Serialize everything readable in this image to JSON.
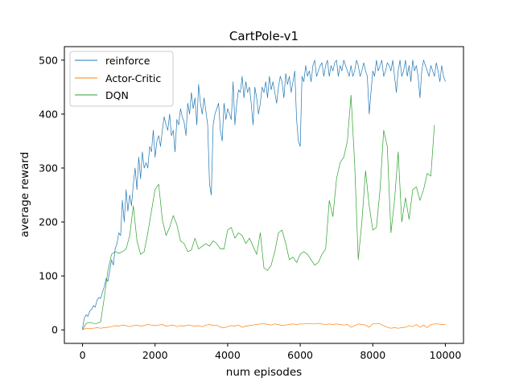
{
  "chart_data": {
    "type": "line",
    "title": "CartPole-v1",
    "xlabel": "num episodes",
    "ylabel": "average reward",
    "xlim": [
      -500,
      10500
    ],
    "ylim": [
      -25,
      525
    ],
    "xticks": [
      0,
      2000,
      4000,
      6000,
      8000,
      10000
    ],
    "xtick_labels": [
      "0",
      "2000",
      "4000",
      "6000",
      "8000",
      "10000"
    ],
    "yticks": [
      0,
      100,
      200,
      300,
      400,
      500
    ],
    "ytick_labels": [
      "0",
      "100",
      "200",
      "300",
      "400",
      "500"
    ],
    "grid": false,
    "legend_position": "top-left",
    "series": [
      {
        "name": "reinforce",
        "color": "#1f77b4",
        "x": [
          0,
          50,
          100,
          150,
          200,
          250,
          300,
          350,
          400,
          450,
          500,
          550,
          600,
          650,
          700,
          750,
          800,
          850,
          900,
          950,
          1000,
          1050,
          1100,
          1150,
          1200,
          1250,
          1300,
          1350,
          1400,
          1450,
          1500,
          1550,
          1600,
          1650,
          1700,
          1750,
          1800,
          1850,
          1900,
          1950,
          2000,
          2050,
          2100,
          2150,
          2200,
          2250,
          2300,
          2350,
          2400,
          2450,
          2500,
          2550,
          2600,
          2650,
          2700,
          2750,
          2800,
          2850,
          2900,
          2950,
          3000,
          3050,
          3100,
          3150,
          3200,
          3250,
          3300,
          3350,
          3400,
          3450,
          3500,
          3550,
          3600,
          3650,
          3700,
          3750,
          3800,
          3850,
          3900,
          3950,
          4000,
          4050,
          4100,
          4150,
          4200,
          4250,
          4300,
          4350,
          4400,
          4450,
          4500,
          4550,
          4600,
          4650,
          4700,
          4750,
          4800,
          4850,
          4900,
          4950,
          5000,
          5050,
          5100,
          5150,
          5200,
          5250,
          5300,
          5350,
          5400,
          5450,
          5500,
          5550,
          5600,
          5650,
          5700,
          5750,
          5800,
          5850,
          5900,
          5950,
          6000,
          6050,
          6100,
          6150,
          6200,
          6250,
          6300,
          6350,
          6400,
          6450,
          6500,
          6550,
          6600,
          6650,
          6700,
          6750,
          6800,
          6850,
          6900,
          6950,
          7000,
          7050,
          7100,
          7150,
          7200,
          7250,
          7300,
          7350,
          7400,
          7450,
          7500,
          7550,
          7600,
          7650,
          7700,
          7750,
          7800,
          7850,
          7900,
          7950,
          8000,
          8050,
          8100,
          8150,
          8200,
          8250,
          8300,
          8350,
          8400,
          8450,
          8500,
          8550,
          8600,
          8650,
          8700,
          8750,
          8800,
          8850,
          8900,
          8950,
          9000,
          9050,
          9100,
          9150,
          9200,
          9250,
          9300,
          9350,
          9400,
          9450,
          9500,
          9550,
          9600,
          9650,
          9700,
          9750,
          9800,
          9850,
          9900,
          9950,
          10000
        ],
        "values": [
          2,
          22,
          28,
          25,
          35,
          38,
          45,
          42,
          55,
          60,
          58,
          70,
          80,
          95,
          90,
          110,
          130,
          120,
          150,
          160,
          180,
          175,
          240,
          200,
          260,
          220,
          250,
          230,
          270,
          300,
          260,
          320,
          280,
          330,
          300,
          310,
          300,
          340,
          330,
          370,
          320,
          350,
          360,
          340,
          370,
          395,
          380,
          370,
          400,
          360,
          370,
          330,
          390,
          380,
          410,
          395,
          385,
          360,
          420,
          400,
          440,
          410,
          430,
          380,
          455,
          420,
          400,
          430,
          405,
          380,
          270,
          250,
          380,
          400,
          410,
          420,
          370,
          350,
          420,
          390,
          410,
          400,
          390,
          460,
          380,
          420,
          445,
          440,
          470,
          430,
          460,
          440,
          450,
          420,
          380,
          450,
          430,
          400,
          420,
          450,
          440,
          460,
          430,
          470,
          445,
          460,
          440,
          420,
          450,
          470,
          460,
          430,
          475,
          455,
          470,
          440,
          460,
          480,
          390,
          350,
          340,
          470,
          460,
          490,
          470,
          480,
          460,
          490,
          500,
          470,
          480,
          490,
          495,
          470,
          490,
          500,
          470,
          490,
          480,
          495,
          500,
          470,
          490,
          480,
          500,
          490,
          480,
          470,
          490,
          470,
          480,
          500,
          490,
          470,
          480,
          495,
          480,
          470,
          400,
          440,
          480,
          470,
          500,
          480,
          490,
          500,
          470,
          480,
          495,
          490,
          480,
          500,
          470,
          440,
          480,
          500,
          470,
          480,
          500,
          470,
          490,
          460,
          500,
          480,
          490,
          470,
          430,
          480,
          500,
          490,
          480,
          470,
          490,
          480,
          470,
          495,
          480,
          460,
          490,
          470,
          460
        ]
      },
      {
        "name": "Actor-Critic",
        "color": "#ff7f0e",
        "x": [
          0,
          100,
          200,
          300,
          400,
          500,
          600,
          700,
          800,
          900,
          1000,
          1100,
          1200,
          1300,
          1400,
          1500,
          1600,
          1700,
          1800,
          1900,
          2000,
          2100,
          2200,
          2300,
          2400,
          2500,
          2600,
          2700,
          2800,
          2900,
          3000,
          3100,
          3200,
          3300,
          3400,
          3500,
          3600,
          3700,
          3800,
          3900,
          4000,
          4100,
          4200,
          4300,
          4400,
          4500,
          4600,
          4700,
          4800,
          4900,
          5000,
          5100,
          5200,
          5300,
          5400,
          5500,
          5600,
          5700,
          5800,
          5900,
          6000,
          6100,
          6200,
          6300,
          6400,
          6500,
          6600,
          6700,
          6800,
          6900,
          7000,
          7100,
          7200,
          7300,
          7400,
          7500,
          7600,
          7700,
          7800,
          7900,
          8000,
          8100,
          8200,
          8300,
          8400,
          8500,
          8600,
          8700,
          8800,
          8900,
          9000,
          9100,
          9200,
          9300,
          9400,
          9500,
          9600,
          9700,
          9800,
          9900,
          10000
        ],
        "values": [
          0,
          3,
          2,
          3,
          4,
          3,
          4,
          5,
          6,
          8,
          7,
          9,
          8,
          6,
          8,
          9,
          7,
          8,
          10,
          9,
          8,
          9,
          10,
          7,
          8,
          9,
          6,
          8,
          7,
          9,
          8,
          7,
          8,
          6,
          9,
          10,
          8,
          9,
          5,
          4,
          6,
          8,
          7,
          9,
          5,
          7,
          8,
          9,
          10,
          11,
          12,
          10,
          9,
          11,
          10,
          8,
          9,
          10,
          11,
          10,
          11,
          11,
          12,
          11,
          11,
          12,
          11,
          10,
          11,
          10,
          11,
          10,
          9,
          10,
          5,
          8,
          11,
          10,
          9,
          5,
          11,
          12,
          11,
          8,
          5,
          3,
          4,
          3,
          4,
          5,
          8,
          6,
          10,
          5,
          9,
          4,
          10,
          11,
          11,
          10,
          10
        ]
      },
      {
        "name": "DQN",
        "color": "#2ca02c",
        "x": [
          0,
          100,
          200,
          300,
          400,
          500,
          600,
          700,
          800,
          900,
          1000,
          1100,
          1200,
          1300,
          1400,
          1500,
          1600,
          1700,
          1800,
          1900,
          2000,
          2100,
          2200,
          2300,
          2400,
          2500,
          2600,
          2700,
          2800,
          2900,
          3000,
          3100,
          3200,
          3300,
          3400,
          3500,
          3600,
          3700,
          3800,
          3900,
          4000,
          4100,
          4200,
          4300,
          4400,
          4500,
          4600,
          4700,
          4800,
          4900,
          5000,
          5100,
          5200,
          5300,
          5400,
          5500,
          5600,
          5700,
          5800,
          5900,
          6000,
          6100,
          6200,
          6300,
          6400,
          6500,
          6600,
          6700,
          6800,
          6900,
          7000,
          7100,
          7200,
          7300,
          7400,
          7500,
          7600,
          7700,
          7800,
          7900,
          8000,
          8100,
          8200,
          8300,
          8400,
          8500,
          8600,
          8700,
          8800,
          8900,
          9000,
          9100,
          9200,
          9300,
          9400,
          9500,
          9600,
          9700
        ],
        "values": [
          0,
          12,
          14,
          12,
          12,
          15,
          60,
          110,
          140,
          145,
          142,
          145,
          150,
          175,
          230,
          165,
          140,
          145,
          180,
          220,
          260,
          270,
          205,
          175,
          190,
          212,
          195,
          165,
          160,
          145,
          148,
          170,
          150,
          155,
          160,
          155,
          165,
          160,
          150,
          150,
          185,
          190,
          170,
          180,
          175,
          160,
          170,
          155,
          140,
          180,
          115,
          110,
          120,
          145,
          180,
          185,
          160,
          130,
          135,
          125,
          140,
          145,
          140,
          130,
          120,
          125,
          140,
          150,
          240,
          210,
          280,
          310,
          320,
          350,
          435,
          310,
          130,
          200,
          295,
          230,
          185,
          190,
          260,
          370,
          340,
          180,
          240,
          330,
          200,
          245,
          205,
          260,
          265,
          240,
          260,
          290,
          285,
          380
        ]
      }
    ]
  }
}
